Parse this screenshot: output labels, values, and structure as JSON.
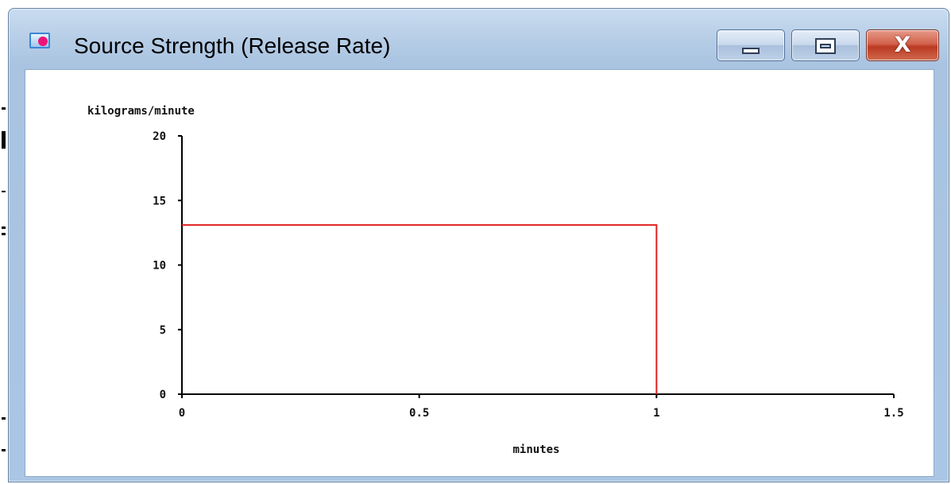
{
  "window": {
    "title": "Source Strength (Release Rate)",
    "icon": "chart-window-icon",
    "controls": {
      "minimize": "minimize-icon",
      "maximize": "maximize-icon",
      "close_glyph": "X"
    }
  },
  "chart_data": {
    "type": "line",
    "ylabel": "kilograms/minute",
    "xlabel": "minutes",
    "xlim": [
      0,
      1.5
    ],
    "ylim": [
      0,
      20
    ],
    "x_ticks": [
      0,
      0.5,
      1,
      1.5
    ],
    "x_tick_labels": [
      "0",
      "0.5",
      "1",
      "1.5"
    ],
    "y_ticks": [
      0,
      5,
      10,
      15,
      20
    ],
    "y_tick_labels": [
      "0",
      "5",
      "10",
      "15",
      "20"
    ],
    "grid": false,
    "series": [
      {
        "color": "#e02020",
        "x": [
          0,
          1,
          1
        ],
        "y": [
          13.1,
          13.1,
          0
        ]
      }
    ]
  },
  "colors": {
    "axis": "#000000",
    "series": "#e02020",
    "close_button": "#c24a33",
    "frame": "#aac6e4"
  }
}
